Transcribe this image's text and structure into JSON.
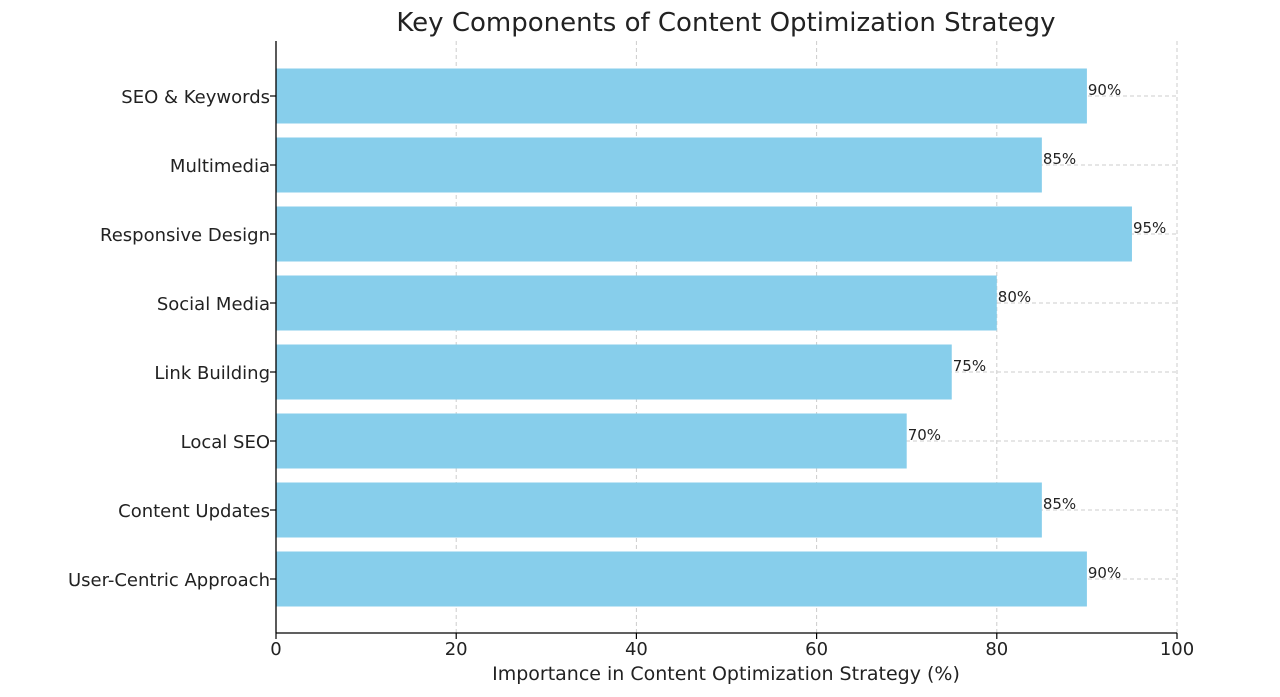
{
  "chart_data": {
    "type": "bar",
    "orientation": "horizontal",
    "title": "Key Components of Content Optimization Strategy",
    "xlabel": "Importance in Content Optimization Strategy (%)",
    "ylabel": "",
    "xlim": [
      0,
      100
    ],
    "x_ticks": [
      0,
      20,
      40,
      60,
      80,
      100
    ],
    "grid": true,
    "grid_style": "dashed",
    "bar_color": "#87CEEB",
    "categories": [
      "SEO & Keywords",
      "Multimedia",
      "Responsive Design",
      "Social Media",
      "Link Building",
      "Local SEO",
      "Content Updates",
      "User-Centric Approach"
    ],
    "values": [
      90,
      85,
      95,
      80,
      75,
      70,
      85,
      90
    ],
    "value_labels": [
      "90%",
      "85%",
      "95%",
      "80%",
      "75%",
      "70%",
      "85%",
      "90%"
    ]
  }
}
